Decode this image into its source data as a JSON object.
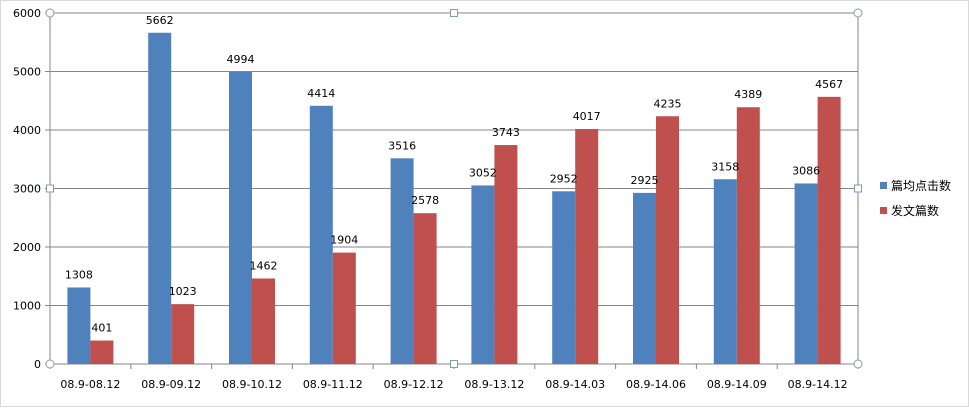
{
  "chart_data": {
    "type": "bar",
    "categories": [
      "08.9-08.12",
      "08.9-09.12",
      "08.9-10.12",
      "08.9-11.12",
      "08.9-12.12",
      "08.9-13.12",
      "08.9-14.03",
      "08.9-14.06",
      "08.9-14.09",
      "08.9-14.12"
    ],
    "series": [
      {
        "name": "篇均点击数",
        "color": "#4f81bd",
        "values": [
          1308,
          5662,
          4994,
          4414,
          3516,
          3052,
          2952,
          2925,
          3158,
          3086
        ]
      },
      {
        "name": "发文篇数",
        "color": "#c0504d",
        "values": [
          401,
          1023,
          1462,
          1904,
          2578,
          3743,
          4017,
          4235,
          4389,
          4567
        ]
      }
    ],
    "ylim": [
      0,
      6000
    ],
    "yticks": [
      0,
      1000,
      2000,
      3000,
      4000,
      5000,
      6000
    ],
    "grid": true,
    "legend_position": "right",
    "data_labels": true
  }
}
